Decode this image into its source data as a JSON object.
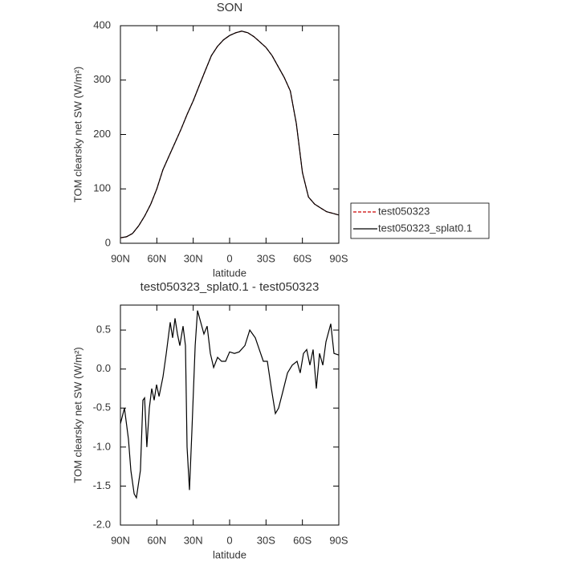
{
  "chart_data": [
    {
      "type": "line",
      "title": "SON",
      "xlabel": "latitude",
      "ylabel": "TOM clearsky net SW (W/m²)",
      "x": [
        90,
        85,
        80,
        75,
        70,
        65,
        60,
        55,
        50,
        45,
        40,
        35,
        30,
        25,
        20,
        15,
        10,
        5,
        0,
        -5,
        -10,
        -15,
        -20,
        -25,
        -30,
        -35,
        -40,
        -45,
        -50,
        -55,
        -60,
        -65,
        -70,
        -75,
        -80,
        -85,
        -90
      ],
      "series": [
        {
          "name": "test050323",
          "color": "#cc0000",
          "dash": true,
          "values": [
            10,
            12,
            18,
            32,
            50,
            72,
            100,
            135,
            160,
            185,
            210,
            237,
            262,
            290,
            318,
            345,
            362,
            374,
            382,
            387,
            390,
            387,
            380,
            370,
            360,
            345,
            325,
            305,
            280,
            220,
            130,
            85,
            72,
            65,
            58,
            55,
            52
          ]
        },
        {
          "name": "test050323_splat0.1",
          "color": "#000000",
          "dash": false,
          "values": [
            10,
            12,
            18,
            32,
            50,
            72,
            100,
            135,
            160,
            185,
            210,
            237,
            262,
            290,
            318,
            345,
            362,
            374,
            382,
            387,
            390,
            387,
            380,
            370,
            360,
            345,
            325,
            305,
            280,
            220,
            130,
            85,
            72,
            65,
            58,
            55,
            52
          ]
        }
      ],
      "xlim": [
        90,
        -90
      ],
      "xticks": [
        {
          "value": 90,
          "label": "90N"
        },
        {
          "value": 60,
          "label": "60N"
        },
        {
          "value": 30,
          "label": "30N"
        },
        0,
        {
          "value": -30,
          "label": "30S"
        },
        {
          "value": -60,
          "label": "60S"
        },
        {
          "value": -90,
          "label": "90S"
        }
      ],
      "ylim": [
        0,
        400
      ],
      "yticks": [
        0,
        100,
        200,
        300,
        400
      ],
      "legend": "right"
    },
    {
      "type": "line",
      "title": "test050323_splat0.1 - test050323",
      "xlabel": "latitude",
      "ylabel": "TOM clearsky net SW (W/m²)",
      "x": [
        90,
        86.7,
        83.4,
        81.4,
        78.7,
        76.8,
        73.5,
        71.5,
        70.1,
        68.2,
        66.2,
        64.2,
        62.2,
        60.2,
        58.2,
        54.9,
        52.2,
        49.0,
        47.0,
        45.0,
        43.0,
        41.0,
        38.4,
        36.4,
        35.1,
        33.1,
        31.1,
        28.4,
        26.5,
        23.8,
        21.2,
        18.5,
        15.9,
        13.2,
        9.9,
        6.6,
        3.3,
        0,
        -4.0,
        -7.9,
        -12.6,
        -16.6,
        -21.2,
        -24.5,
        -27.8,
        -31.1,
        -34.4,
        -37.7,
        -40.4,
        -43.7,
        -47.7,
        -51.6,
        -55.6,
        -58.2,
        -60.9,
        -63.5,
        -66.2,
        -68.8,
        -71.5,
        -74.1,
        -76.8,
        -79.4,
        -83.4,
        -86.0,
        -90
      ],
      "series": [
        {
          "color": "#000000",
          "dash": false,
          "values": [
            -0.7,
            -0.5,
            -0.9,
            -1.3,
            -1.6,
            -1.65,
            -1.3,
            -0.4,
            -0.37,
            -1.0,
            -0.5,
            -0.25,
            -0.4,
            -0.2,
            -0.35,
            -0.1,
            0.2,
            0.6,
            0.4,
            0.65,
            0.45,
            0.3,
            0.55,
            0.3,
            -1.0,
            -1.55,
            -0.8,
            0.3,
            0.75,
            0.6,
            0.45,
            0.55,
            0.2,
            0.02,
            0.15,
            0.1,
            0.1,
            0.22,
            0.2,
            0.22,
            0.3,
            0.5,
            0.4,
            0.25,
            0.1,
            0.1,
            -0.25,
            -0.57,
            -0.5,
            -0.3,
            -0.05,
            0.05,
            0.1,
            -0.05,
            0.2,
            0.25,
            0.05,
            0.25,
            -0.25,
            0.2,
            0.05,
            0.35,
            0.58,
            0.2,
            0.18
          ]
        }
      ],
      "xlim": [
        90,
        -90
      ],
      "xticks": [
        {
          "value": 90,
          "label": "90N"
        },
        {
          "value": 60,
          "label": "60N"
        },
        {
          "value": 30,
          "label": "30N"
        },
        0,
        {
          "value": -30,
          "label": "30S"
        },
        {
          "value": -60,
          "label": "60S"
        },
        {
          "value": -90,
          "label": "90S"
        }
      ],
      "ylim": [
        -2.0,
        0.82
      ],
      "yticks": [
        {
          "value": -2.0,
          "label": "-2.0"
        },
        {
          "value": -1.5,
          "label": "-1.5"
        },
        {
          "value": -1.0,
          "label": "-1.0"
        },
        -0.5,
        {
          "value": 0.0,
          "label": "0.0"
        },
        0.5
      ]
    }
  ]
}
